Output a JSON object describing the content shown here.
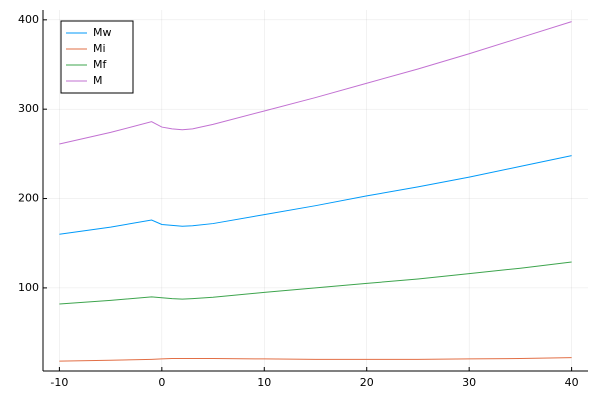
{
  "chart_data": {
    "type": "line",
    "x": [
      -10,
      -5,
      -1,
      0,
      1,
      2,
      3,
      5,
      10,
      15,
      20,
      25,
      30,
      35,
      40
    ],
    "series": [
      {
        "name": "Mw",
        "color": "#009af9",
        "values": [
          160,
          168,
          176,
          171,
          170,
          169,
          169.5,
          172,
          182,
          192,
          203,
          213,
          224,
          236,
          248
        ]
      },
      {
        "name": "Mi",
        "color": "#e26f46",
        "values": [
          18,
          19,
          20,
          20.5,
          21,
          21,
          21,
          21,
          20.5,
          20,
          20,
          20,
          20.5,
          21,
          22
        ]
      },
      {
        "name": "Mf",
        "color": "#3da44d",
        "values": [
          82,
          86,
          90,
          89,
          88,
          87.5,
          88,
          89.5,
          95,
          100,
          105,
          110,
          116,
          122,
          129
        ]
      },
      {
        "name": "M",
        "color": "#c271d2",
        "values": [
          261,
          274,
          286,
          280,
          278,
          277,
          278,
          283,
          298,
          313,
          329,
          345,
          362,
          380,
          398
        ]
      }
    ],
    "xlim": [
      -11.6,
      41.6
    ],
    "xticks": [
      -10,
      0,
      10,
      20,
      30,
      40
    ],
    "ylim": [
      7,
      411
    ],
    "yticks": [
      100,
      200,
      300,
      400
    ],
    "grid": true,
    "legend": "top-left"
  }
}
